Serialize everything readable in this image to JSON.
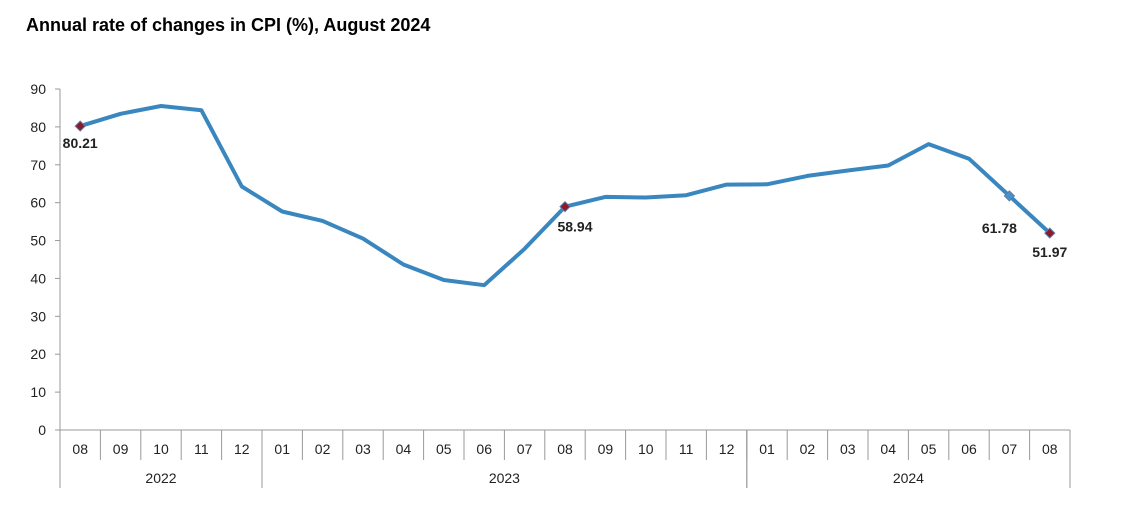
{
  "title": "Annual rate of changes in CPI (%), August 2024",
  "chart_data": {
    "type": "line",
    "title": "Annual rate of changes in CPI (%), August 2024",
    "xlabel": "",
    "ylabel": "",
    "ylim": [
      0,
      90
    ],
    "yticks": [
      0,
      10,
      20,
      30,
      40,
      50,
      60,
      70,
      80,
      90
    ],
    "grid": false,
    "categories": [
      "08",
      "09",
      "10",
      "11",
      "12",
      "01",
      "02",
      "03",
      "04",
      "05",
      "06",
      "07",
      "08",
      "09",
      "10",
      "11",
      "12",
      "01",
      "02",
      "03",
      "04",
      "05",
      "06",
      "07",
      "08"
    ],
    "years": [
      {
        "label": "2022",
        "start": 0,
        "end": 4
      },
      {
        "label": "2023",
        "start": 5,
        "end": 16
      },
      {
        "label": "2024",
        "start": 17,
        "end": 24
      }
    ],
    "series": [
      {
        "color": "#3a87c0",
        "values": [
          80.21,
          83.45,
          85.51,
          84.39,
          64.27,
          57.68,
          55.18,
          50.51,
          43.68,
          39.59,
          38.21,
          47.83,
          58.94,
          61.53,
          61.36,
          61.98,
          64.77,
          64.86,
          67.07,
          68.5,
          69.8,
          75.45,
          71.6,
          61.78,
          51.97
        ]
      }
    ],
    "annotations": [
      {
        "index": 0,
        "label": "80.21",
        "marker_color": "#8b1a2b"
      },
      {
        "index": 12,
        "label": "58.94",
        "marker_color": "#8b1a2b"
      },
      {
        "index": 23,
        "label": "61.78",
        "marker_color": "#4a8fc8"
      },
      {
        "index": 24,
        "label": "51.97",
        "marker_color": "#8b1a2b"
      }
    ]
  }
}
